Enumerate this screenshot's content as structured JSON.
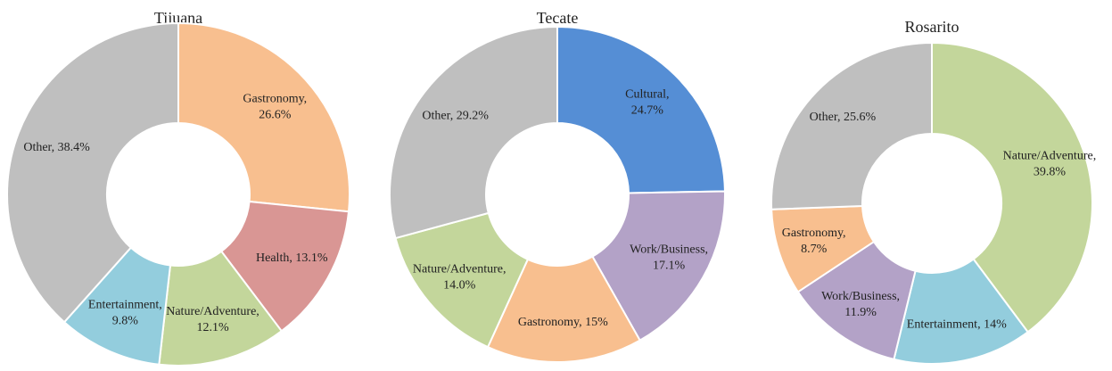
{
  "chart_data": [
    {
      "type": "donut",
      "title": "Tijuana",
      "values": [
        26.6,
        13.1,
        12.1,
        9.8,
        38.4
      ],
      "value_labels": [
        [
          "Gastronomy,",
          "26.6%"
        ],
        [
          "Health, 13.1%"
        ],
        [
          "Nature/Adventure,",
          "12.1%"
        ],
        [
          "Entertainment,",
          "9.8%"
        ],
        [
          "Other, 38.4%"
        ]
      ],
      "colors": [
        "#f8bf8f",
        "#d99694",
        "#c3d69b",
        "#93cddd",
        "#bfbfbf"
      ]
    },
    {
      "type": "donut",
      "title": "Tecate",
      "values": [
        24.7,
        17.1,
        15,
        14.0,
        29.2
      ],
      "value_labels": [
        [
          "Cultural,",
          "24.7%"
        ],
        [
          "Work/Business,",
          "17.1%"
        ],
        [
          "Gastronomy, 15%"
        ],
        [
          "Nature/Adventure,",
          "14.0%"
        ],
        [
          "Other, 29.2%"
        ]
      ],
      "colors": [
        "#558ed5",
        "#b3a2c7",
        "#f8bf8f",
        "#c3d69b",
        "#bfbfbf"
      ]
    },
    {
      "type": "donut",
      "title": "Rosarito",
      "values": [
        39.8,
        14,
        11.9,
        8.7,
        25.6
      ],
      "value_labels": [
        [
          "Nature/Adventure,",
          "39.8%"
        ],
        [
          "Entertainment, 14%"
        ],
        [
          "Work/Business,",
          "11.9%"
        ],
        [
          "Gastronomy,",
          "8.7%"
        ],
        [
          "Other, 25.6%"
        ]
      ],
      "colors": [
        "#c3d69b",
        "#93cddd",
        "#b3a2c7",
        "#f8bf8f",
        "#bfbfbf"
      ]
    }
  ]
}
